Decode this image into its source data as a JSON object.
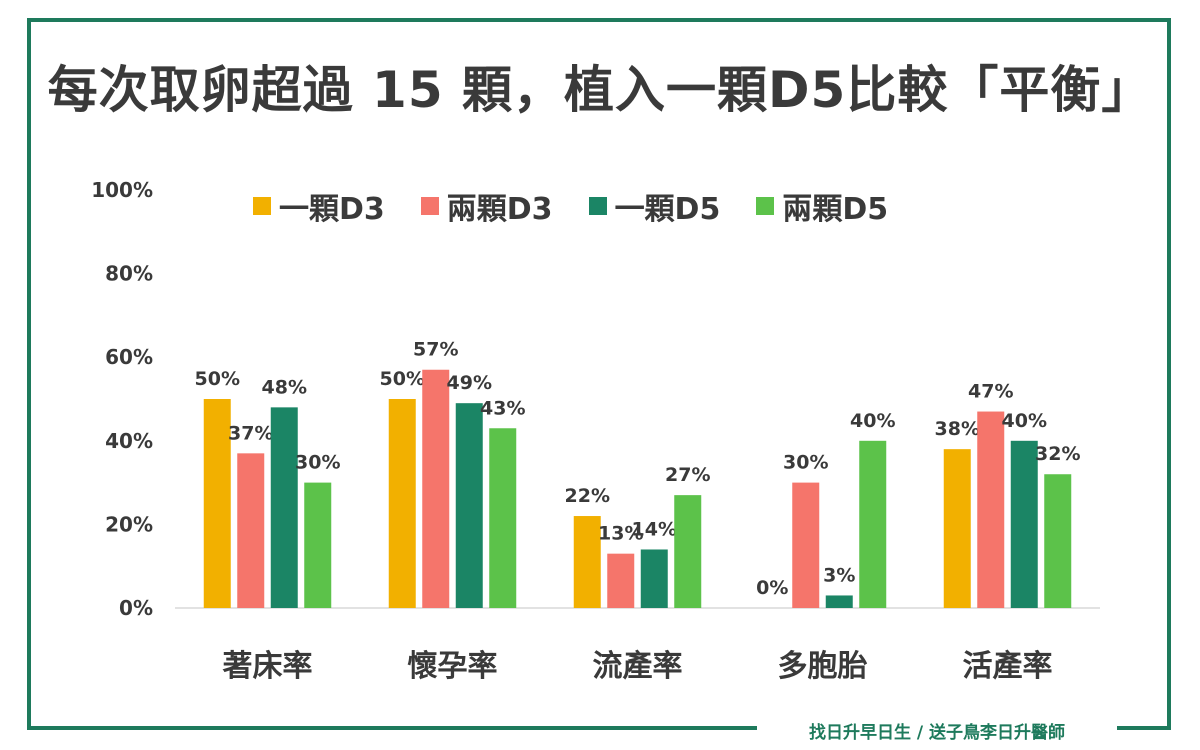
{
  "title": "每次取卵超過 15 顆，植入一顆D5比較「平衡」",
  "footer": "找日升早日生 / 送子鳥李日升醫師",
  "colors": {
    "frame": "#1e7a5c",
    "axis_text": "#3a3a3a",
    "gridline": "#d9d9d9"
  },
  "chart_data": {
    "type": "bar",
    "categories": [
      "著床率",
      "懷孕率",
      "流產率",
      "多胞胎",
      "活產率"
    ],
    "series": [
      {
        "name": "一顆D3",
        "color": "#f2b000",
        "values": [
          50,
          50,
          22,
          0,
          38
        ],
        "labels": [
          "50%",
          "50%",
          "22%",
          "0%",
          "38%"
        ]
      },
      {
        "name": "兩顆D3",
        "color": "#f5756b",
        "values": [
          37,
          57,
          13,
          30,
          47
        ],
        "labels": [
          "37%",
          "57%",
          "13%",
          "30%",
          "47%"
        ]
      },
      {
        "name": "一顆D5",
        "color": "#1b8565",
        "values": [
          48,
          49,
          14,
          3,
          40
        ],
        "labels": [
          "48%",
          "49%",
          "14%",
          "3%",
          "40%"
        ]
      },
      {
        "name": "兩顆D5",
        "color": "#5cc24a",
        "values": [
          30,
          43,
          27,
          40,
          32
        ],
        "labels": [
          "30%",
          "43%",
          "27%",
          "40%",
          "32%"
        ]
      }
    ],
    "ylim": [
      0,
      100
    ],
    "yticks": [
      0,
      20,
      40,
      60,
      80,
      100
    ],
    "ytick_labels": [
      "0%",
      "20%",
      "40%",
      "60%",
      "80%",
      "100%"
    ],
    "grid": false,
    "legend_position": "top"
  }
}
